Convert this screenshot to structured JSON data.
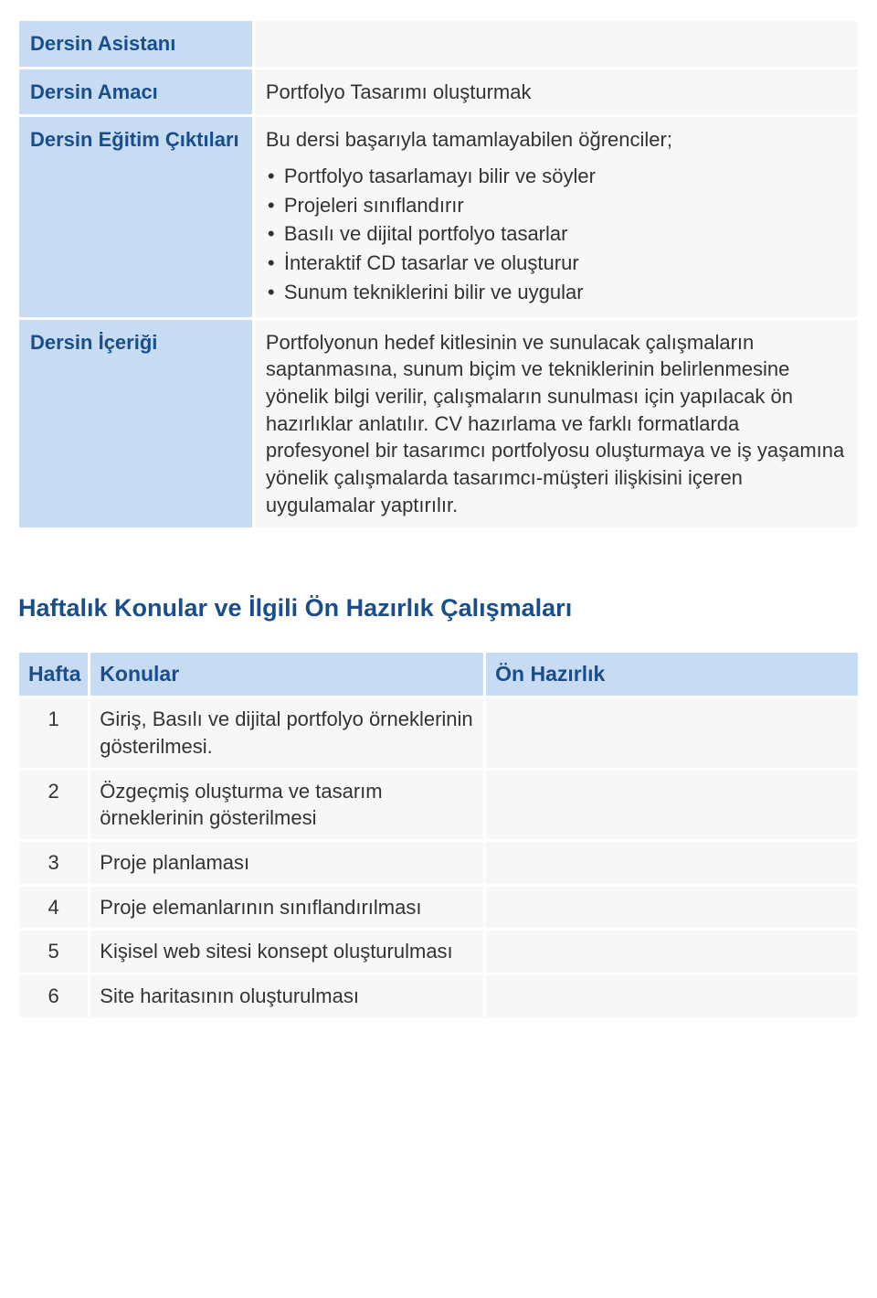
{
  "colors": {
    "header_bg": "#c7dcf2",
    "header_text": "#1a4e8a",
    "cell_bg": "#f7f7f7",
    "body_text": "#333333",
    "border": "#ffffff"
  },
  "info_table": {
    "rows": [
      {
        "label": "Dersin Asistanı",
        "value": ""
      },
      {
        "label": "Dersin Amacı",
        "value": "Portfolyo Tasarımı oluşturmak"
      },
      {
        "label": "Dersin Eğitim Çıktıları",
        "intro": "Bu dersi başarıyla tamamlayabilen öğrenciler;",
        "bullets": [
          "Portfolyo tasarlamayı bilir ve söyler",
          "Projeleri sınıflandırır",
          "Basılı ve dijital portfolyo tasarlar",
          "İnteraktif CD tasarlar ve oluşturur",
          "Sunum tekniklerini bilir ve uygular"
        ]
      },
      {
        "label": "Dersin İçeriği",
        "value": "Portfolyonun hedef kitlesinin ve sunulacak çalışmaların saptanmasına, sunum biçim ve tekniklerinin belirlenmesine yönelik bilgi verilir, çalışmaların sunulması için yapılacak ön hazırlıklar anlatılır. CV hazırlama ve farklı formatlarda profesyonel bir tasarımcı portfolyosu oluşturmaya ve iş yaşamına yönelik çalışmalarda tasarımcı-müşteri ilişkisini içeren uygulamalar yaptırılır."
      }
    ]
  },
  "section_heading": "Haftalık Konular ve İlgili Ön Hazırlık Çalışmaları",
  "weekly_table": {
    "headers": {
      "week": "Hafta",
      "topic": "Konular",
      "prep": "Ön Hazırlık"
    },
    "rows": [
      {
        "week": "1",
        "topic": "Giriş, Basılı ve dijital portfolyo örneklerinin gösterilmesi.",
        "prep": ""
      },
      {
        "week": "2",
        "topic": "Özgeçmiş oluşturma ve tasarım örneklerinin gösterilmesi",
        "prep": ""
      },
      {
        "week": "3",
        "topic": "Proje planlaması",
        "prep": ""
      },
      {
        "week": "4",
        "topic": "Proje elemanlarının sınıflandırılması",
        "prep": ""
      },
      {
        "week": "5",
        "topic": "Kişisel web sitesi konsept oluşturulması",
        "prep": ""
      },
      {
        "week": "6",
        "topic": "Site haritasının oluşturulması",
        "prep": ""
      }
    ]
  }
}
